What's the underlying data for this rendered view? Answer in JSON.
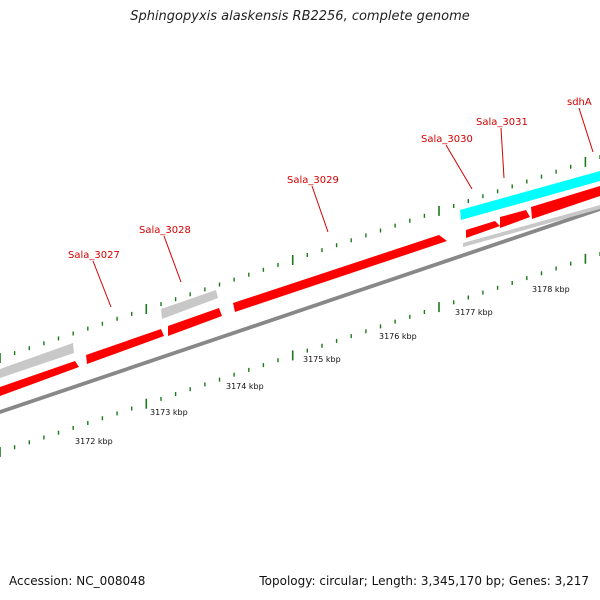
{
  "title": "Sphingopyxis alaskensis RB2256, complete genome",
  "footer": {
    "accession": "Accession: NC_008048",
    "meta": "Topology: circular; Length: 3,345,170 bp; Genes: 3,217"
  },
  "colors": {
    "cds": "#ff0000",
    "other_gene": "#c8c8c8",
    "highlight": "#00ffff",
    "backbone": "#888888",
    "ticks": "#1a7a1a",
    "label": "#d40000"
  },
  "scale_labels": [
    "3172 kbp",
    "3173 kbp",
    "3174 kbp",
    "3175 kbp",
    "3176 kbp",
    "3177 kbp",
    "3178 kbp"
  ],
  "gene_labels": [
    "Sala_3027",
    "Sala_3028",
    "Sala_3029",
    "Sala_3030",
    "Sala_3031",
    "sdhA"
  ]
}
